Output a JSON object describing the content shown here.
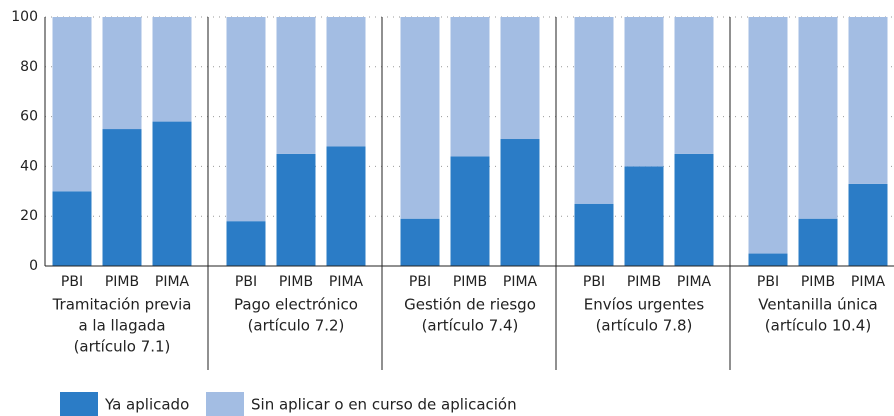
{
  "chart_data": {
    "type": "stacked-bar",
    "categories": [
      "PBI",
      "PIMB",
      "PIMA",
      "PBI",
      "PIMB",
      "PIMA",
      "PBI",
      "PIMB",
      "PIMA",
      "PBI",
      "PIMB",
      "PIMA",
      "PBI",
      "PIMB",
      "PIMA"
    ],
    "groups": [
      [
        "Tramitación previa",
        "a la llagada",
        "(artículo 7.1)"
      ],
      [
        "Pago electrónico",
        "(artículo 7.2)"
      ],
      [
        "Gestión de riesgo",
        "(artículo 7.4)"
      ],
      [
        "Envíos urgentes",
        "(artículo 7.8)"
      ],
      [
        "Ventanilla única",
        "(artículo 10.4)"
      ]
    ],
    "series": [
      {
        "name": "Ya aplicado",
        "color": "#2b7cc6",
        "values": [
          30,
          55,
          58,
          18,
          45,
          48,
          19,
          44,
          51,
          25,
          40,
          45,
          5,
          19,
          33
        ]
      },
      {
        "name": "Sin aplicar o en curso de aplicación",
        "color": "#a3bde3",
        "values": [
          70,
          45,
          42,
          82,
          55,
          52,
          81,
          56,
          49,
          75,
          60,
          55,
          95,
          81,
          67
        ]
      }
    ],
    "ylim": [
      0,
      100
    ],
    "yticks": [
      0,
      20,
      40,
      60,
      80,
      100
    ],
    "grid": true
  }
}
